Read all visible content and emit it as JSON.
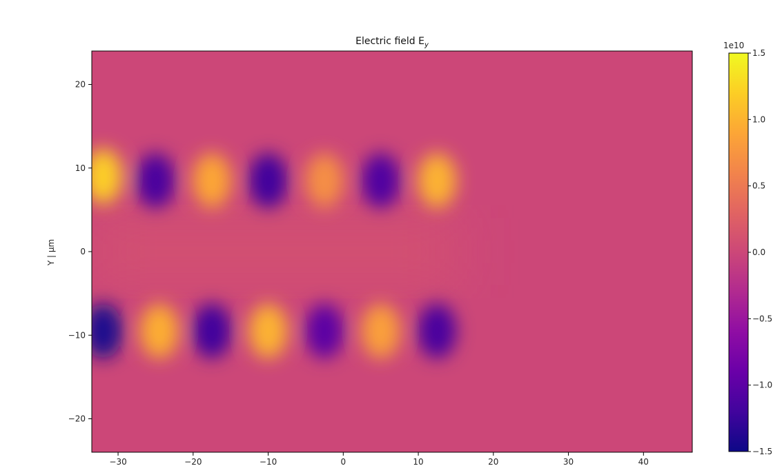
{
  "chart_data": {
    "type": "heatmap",
    "title": "Electric field E",
    "title_subscript": "y",
    "xlabel": "",
    "ylabel": "Y | μm",
    "xlim": [
      -33.5,
      46.5
    ],
    "ylim": [
      -24,
      24
    ],
    "x_ticks": [
      -30,
      -20,
      -10,
      0,
      10,
      20,
      30,
      40
    ],
    "x_tick_labels": [
      "−30",
      "−20",
      "−10",
      "0",
      "10",
      "20",
      "30",
      "40"
    ],
    "y_ticks": [
      20,
      10,
      0,
      -10,
      -20
    ],
    "y_tick_labels": [
      "20",
      "10",
      "0",
      "−10",
      "−20"
    ],
    "colorbar": {
      "colormap": "plasma",
      "min": -1.5,
      "max": 1.5,
      "offset_label": "1e10",
      "ticks": [
        1.5,
        1.0,
        0.5,
        0.0,
        -0.5,
        -1.0,
        -1.5
      ],
      "tick_labels": [
        "1.5",
        "1.0",
        "0.5",
        "0.0",
        "−0.5",
        "−1.0",
        "−1.5"
      ]
    },
    "lobes": [
      {
        "x": -32,
        "y": 9,
        "value": 1.2
      },
      {
        "x": -25,
        "y": 8.5,
        "value": -1.15
      },
      {
        "x": -17.5,
        "y": 8.5,
        "value": 0.9
      },
      {
        "x": -10,
        "y": 8.5,
        "value": -1.2
      },
      {
        "x": -2.5,
        "y": 8.5,
        "value": 0.7
      },
      {
        "x": 5,
        "y": 8.5,
        "value": -1.1
      },
      {
        "x": 12.5,
        "y": 8.5,
        "value": 1.0
      },
      {
        "x": -32,
        "y": -9.5,
        "value": -1.4
      },
      {
        "x": -24.5,
        "y": -9.5,
        "value": 0.95
      },
      {
        "x": -17.5,
        "y": -9.5,
        "value": -1.2
      },
      {
        "x": -10,
        "y": -9.5,
        "value": 1.0
      },
      {
        "x": -2.5,
        "y": -9.5,
        "value": -1.0
      },
      {
        "x": 5,
        "y": -9.5,
        "value": 0.85
      },
      {
        "x": 12.5,
        "y": -9.5,
        "value": -1.15
      }
    ]
  }
}
